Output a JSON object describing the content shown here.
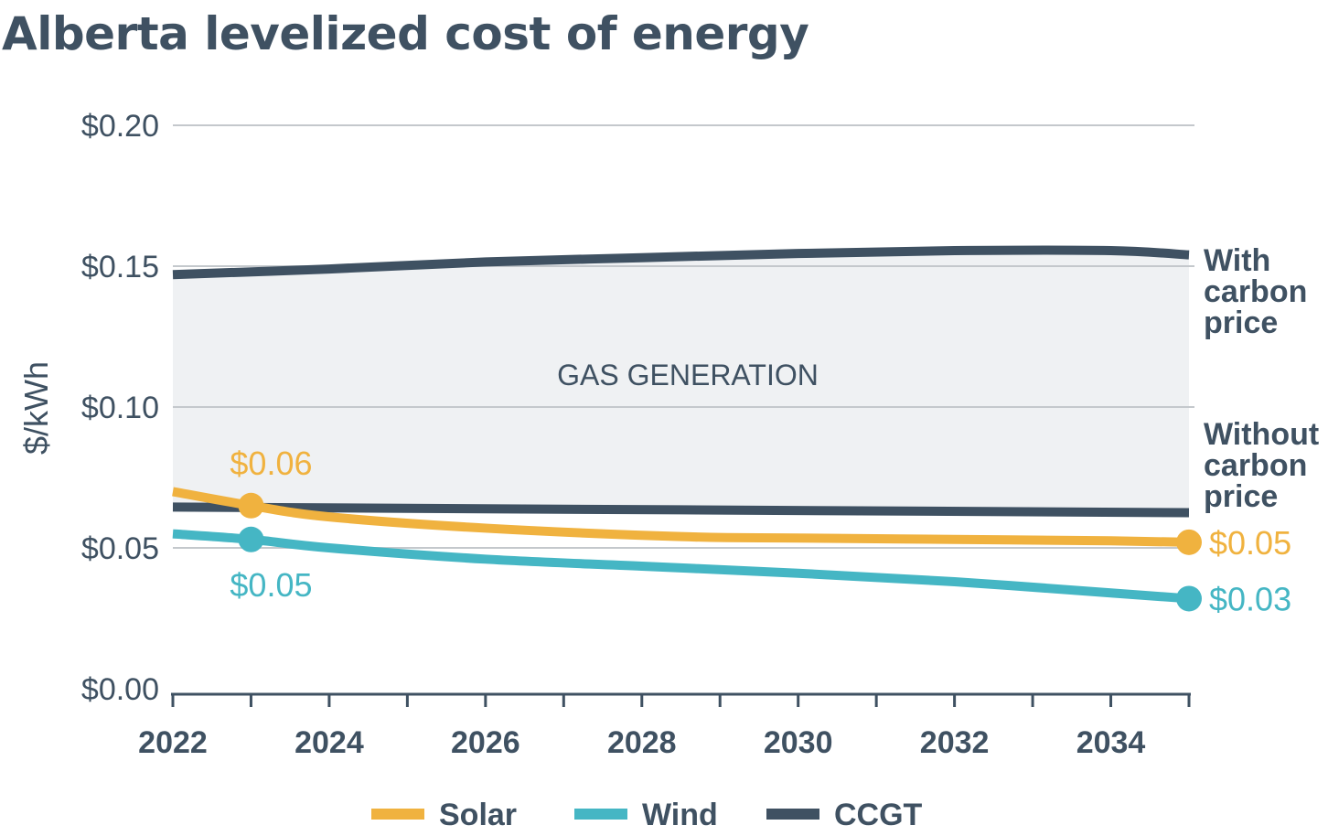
{
  "chart_data": {
    "type": "line",
    "title": "Alberta levelized cost of energy",
    "ylabel": "$/kWh",
    "xlabel": "",
    "ylim": [
      0,
      0.2
    ],
    "xlim": [
      2022,
      2035
    ],
    "yticks": [
      {
        "value": 0.0,
        "label": "$0.00"
      },
      {
        "value": 0.05,
        "label": "$0.05"
      },
      {
        "value": 0.1,
        "label": "$0.10"
      },
      {
        "value": 0.15,
        "label": "$0.15"
      },
      {
        "value": 0.2,
        "label": "$0.20"
      }
    ],
    "xticks": [
      {
        "value": 2022,
        "label": "2022"
      },
      {
        "value": 2024,
        "label": "2024"
      },
      {
        "value": 2026,
        "label": "2026"
      },
      {
        "value": 2028,
        "label": "2028"
      },
      {
        "value": 2030,
        "label": "2030"
      },
      {
        "value": 2032,
        "label": "2032"
      },
      {
        "value": 2034,
        "label": "2034"
      }
    ],
    "grid": true,
    "legend_position": "bottom",
    "region_label": "GAS GENERATION",
    "series": [
      {
        "name": "Solar",
        "color": "#f0b23f",
        "x": [
          2022,
          2023,
          2024,
          2026,
          2028.5,
          2030,
          2032,
          2034,
          2035
        ],
        "y": [
          0.07,
          0.065,
          0.061,
          0.057,
          0.054,
          0.0535,
          0.053,
          0.0525,
          0.052
        ]
      },
      {
        "name": "Wind",
        "color": "#45b6c4",
        "x": [
          2022,
          2023,
          2024,
          2026,
          2028,
          2030,
          2032,
          2034,
          2035
        ],
        "y": [
          0.055,
          0.053,
          0.05,
          0.046,
          0.0435,
          0.041,
          0.038,
          0.034,
          0.032
        ]
      },
      {
        "name": "CCGT",
        "color": "#3f5162",
        "scenario": "With carbon price",
        "x": [
          2022,
          2024,
          2026,
          2028,
          2030,
          2032,
          2034,
          2035
        ],
        "y": [
          0.147,
          0.149,
          0.1515,
          0.153,
          0.1545,
          0.1555,
          0.1555,
          0.154
        ]
      },
      {
        "name": "CCGT",
        "color": "#3f5162",
        "scenario": "Without carbon price",
        "x": [
          2022,
          2035
        ],
        "y": [
          0.0645,
          0.0625
        ]
      }
    ],
    "line_labels": [
      {
        "text": "With carbon price",
        "lines": [
          "With",
          "carbon",
          "price"
        ]
      },
      {
        "text": "Without carbon price",
        "lines": [
          "Without",
          "carbon",
          "price"
        ]
      }
    ],
    "annotations": [
      {
        "series": "Solar",
        "x": 2023,
        "y": 0.065,
        "label": "$0.06",
        "position": "above",
        "color": "#f0b23f"
      },
      {
        "series": "Wind",
        "x": 2023,
        "y": 0.053,
        "label": "$0.05",
        "position": "below",
        "color": "#45b6c4"
      },
      {
        "series": "Solar",
        "x": 2035,
        "y": 0.052,
        "label": "$0.05",
        "position": "right",
        "color": "#f0b23f"
      },
      {
        "series": "Wind",
        "x": 2035,
        "y": 0.032,
        "label": "$0.03",
        "position": "right",
        "color": "#45b6c4"
      }
    ],
    "legend": [
      {
        "name": "Solar",
        "color": "#f0b23f"
      },
      {
        "name": "Wind",
        "color": "#45b6c4"
      },
      {
        "name": "CCGT",
        "color": "#3f5162"
      }
    ]
  },
  "colors": {
    "text": "#3f5162",
    "grid": "#c4c8cc",
    "axis": "#3f5162",
    "region_fill": "#eff1f3"
  }
}
